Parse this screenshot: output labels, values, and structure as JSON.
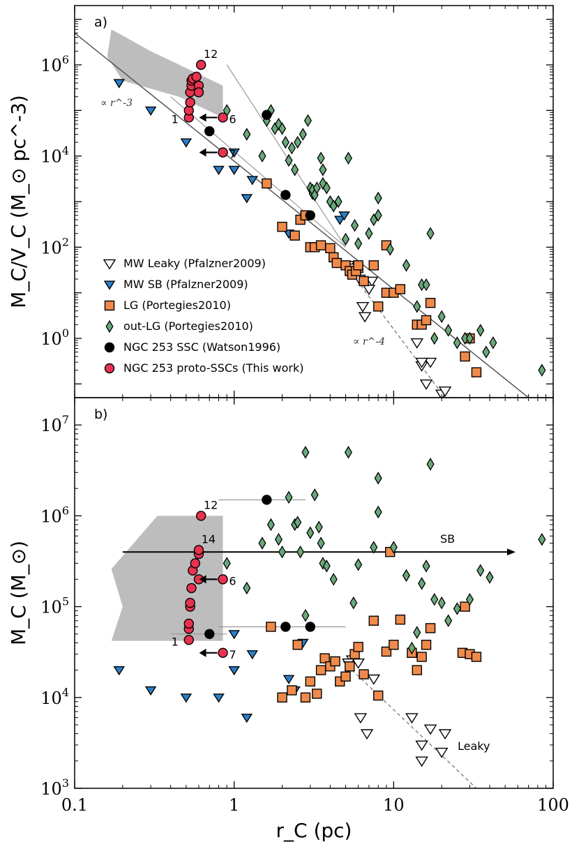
{
  "chart_data": [
    {
      "panel_label": "a)",
      "type": "scatter",
      "xlabel": "r_C (pc)",
      "ylabel": "M_C/V_C (M_⊙ pc^-3)",
      "xscale": "log",
      "yscale": "log",
      "xlim": [
        0.1,
        100
      ],
      "ylim": [
        0.05,
        20000000
      ],
      "ytick_labels": [
        "10^0",
        "10^2",
        "10^4",
        "10^6"
      ],
      "xtick_labels": [
        "0.1",
        "1",
        "10",
        "100"
      ],
      "legend_position": "lower-left",
      "legend": [
        {
          "name": "MW Leaky (Pfalzner2009)",
          "marker": "triangle-down-open",
          "color": "#ffffff"
        },
        {
          "name": "MW SB (Pfalzner2009)",
          "marker": "triangle-down",
          "color": "#2a7fc9"
        },
        {
          "name": "LG (Portegies2010)",
          "marker": "square",
          "color": "#f08a4b"
        },
        {
          "name": "out-LG (Portegies2010)",
          "marker": "diamond",
          "color": "#6aa87a"
        },
        {
          "name": "NGC 253 SSC (Watson1996)",
          "marker": "circle",
          "color": "#000000"
        },
        {
          "name": "NGC 253 proto-SSCs (This work)",
          "marker": "circle",
          "color": "#e8334f"
        }
      ],
      "annotations": [
        "∝ r^-3",
        "∝ r^-4",
        "12",
        "1",
        "6",
        "7"
      ],
      "series": [
        {
          "name": "MW Leaky (Pfalzner2009)",
          "x": [
            5.2,
            5.7,
            6.1,
            6.4,
            6.6,
            7.3,
            7.0,
            14,
            15,
            16,
            17,
            15,
            20,
            21
          ],
          "y": [
            40,
            35,
            20,
            5,
            3,
            18,
            12,
            0.8,
            0.25,
            0.1,
            0.3,
            0.3,
            0.06,
            0.07
          ]
        },
        {
          "name": "MW SB (Pfalzner2009)",
          "x": [
            0.19,
            0.3,
            0.5,
            0.8,
            1.0,
            1.0,
            1.3,
            1.2,
            2.2,
            4.6,
            4.9
          ],
          "y": [
            400000,
            100000,
            20000,
            5000,
            12000,
            5000,
            3000,
            1200,
            200,
            400,
            500
          ]
        },
        {
          "name": "LG (Portegies2010)",
          "x": [
            1.6,
            2.0,
            2.4,
            2.6,
            2.8,
            2.8,
            3.0,
            3.2,
            3.5,
            4.0,
            4.2,
            4.4,
            5.0,
            5.3,
            5.5,
            6.0,
            5.8,
            6.0,
            6.5,
            7.5,
            8.0,
            9.0,
            9.0,
            10,
            11,
            14,
            15,
            16,
            17,
            28,
            30,
            33
          ],
          "y": [
            2500,
            280,
            180,
            400,
            500,
            500,
            100,
            100,
            110,
            95,
            60,
            45,
            40,
            30,
            25,
            35,
            30,
            40,
            18,
            40,
            5,
            110,
            10,
            10,
            12,
            2,
            2,
            2.5,
            6,
            0.4,
            1,
            0.18
          ]
        },
        {
          "name": "out-LG (Portegies2010)",
          "x": [
            0.9,
            1.2,
            1.5,
            1.6,
            1.7,
            1.8,
            1.9,
            2.0,
            2.1,
            2.3,
            2.2,
            2.4,
            2.5,
            2.7,
            2.9,
            3.0,
            3.1,
            3.1,
            3.2,
            3.3,
            3.5,
            3.6,
            3.6,
            3.8,
            4.0,
            4.2,
            4.5,
            5.0,
            5.2,
            5.7,
            6.0,
            7.0,
            7.5,
            8.0,
            8.0,
            9.5,
            12,
            14,
            15,
            16,
            17,
            18,
            20,
            22,
            25,
            28,
            30,
            35,
            38,
            42,
            85
          ],
          "y": [
            100000,
            30000,
            10000,
            60000,
            100000,
            40000,
            50000,
            40000,
            20000,
            15000,
            8000,
            5000,
            20000,
            30000,
            60000,
            2000,
            1500,
            1800,
            1400,
            2000,
            9000,
            5000,
            2500,
            2000,
            1000,
            800,
            1000,
            150,
            9000,
            300,
            120,
            200,
            400,
            1200,
            500,
            90,
            40,
            5,
            15,
            15,
            200,
            1,
            3,
            1.5,
            0.8,
            1,
            1,
            1.5,
            0.5,
            0.8,
            0.2
          ]
        },
        {
          "name": "NGC 253 SSC (Watson1996)",
          "x": [
            1.6,
            0.7,
            2.1,
            3.0
          ],
          "y": [
            80000,
            35000,
            1400,
            500
          ]
        },
        {
          "name": "NGC 253 proto-SSCs (This work)",
          "x": [
            0.52,
            0.52,
            0.53,
            0.53,
            0.54,
            0.54,
            0.55,
            0.58,
            0.6,
            0.6,
            0.62,
            0.85,
            0.85
          ],
          "y": [
            70000,
            100000,
            150000,
            250000,
            350000,
            450000,
            500000,
            550000,
            350000,
            250000,
            1000000,
            70000,
            12000
          ],
          "labels": [
            "1",
            "",
            "",
            "",
            "",
            "",
            "",
            "",
            "",
            "",
            "12",
            "6",
            "7"
          ]
        }
      ]
    },
    {
      "panel_label": "b)",
      "type": "scatter",
      "xlabel": "r_C (pc)",
      "ylabel": "M_C (M_⊙)",
      "xscale": "log",
      "yscale": "log",
      "xlim": [
        0.1,
        100
      ],
      "ylim": [
        1000,
        20000000
      ],
      "ytick_labels": [
        "10^3",
        "10^4",
        "10^5",
        "10^6",
        "10^7"
      ],
      "xtick_labels": [
        "0.1",
        "1",
        "10",
        "100"
      ],
      "annotations": [
        "SB",
        "Leaky",
        "12",
        "14",
        "6",
        "1",
        "7"
      ],
      "series": [
        {
          "name": "MW Leaky (Pfalzner2009)",
          "x": [
            5.5,
            6.0,
            7.5,
            5.2,
            6.2,
            6.8,
            13,
            15,
            17,
            15,
            20,
            21
          ],
          "y": [
            26000,
            24000,
            16000,
            24000,
            6000,
            4000,
            6000,
            3000,
            4500,
            2000,
            2500,
            4000
          ]
        },
        {
          "name": "MW SB (Pfalzner2009)",
          "x": [
            0.19,
            0.3,
            0.5,
            0.8,
            1.0,
            1.0,
            1.3,
            1.2,
            2.2,
            2.4,
            2.7
          ],
          "y": [
            20000,
            12000,
            10000,
            10000,
            50000,
            20000,
            30000,
            6000,
            16000,
            12000,
            40000
          ]
        },
        {
          "name": "LG (Portegies2010)",
          "x": [
            1.7,
            2.0,
            2.3,
            2.5,
            2.8,
            3.0,
            3.3,
            3.5,
            3.7,
            4.0,
            4.3,
            4.6,
            5.0,
            5.3,
            5.7,
            6.0,
            6.5,
            7.5,
            8.0,
            9.0,
            10,
            11,
            13,
            14,
            15,
            16,
            17,
            27,
            28,
            30,
            33,
            9.5
          ],
          "y": [
            60000,
            10000,
            12000,
            38000,
            10000,
            15000,
            11000,
            20000,
            27000,
            22000,
            25000,
            15000,
            17000,
            22000,
            30000,
            36000,
            18000,
            70000,
            10500,
            32000,
            38000,
            72000,
            31000,
            20000,
            28000,
            38000,
            58000,
            31000,
            100000,
            30000,
            28000,
            400000
          ]
        },
        {
          "name": "out-LG (Portegies2010)",
          "x": [
            0.9,
            1.2,
            1.5,
            1.7,
            1.9,
            2.0,
            2.2,
            2.4,
            2.5,
            2.6,
            2.8,
            3.0,
            3.2,
            3.4,
            3.5,
            3.6,
            3.8,
            4.2,
            5.2,
            5.6,
            6.0,
            7.5,
            8.0,
            8.0,
            10,
            12,
            14,
            15,
            16,
            17,
            18,
            20,
            22,
            25,
            30,
            35,
            40,
            85,
            13,
            2.8
          ],
          "y": [
            300000,
            160000,
            500000,
            800000,
            550000,
            400000,
            1600000,
            800000,
            850000,
            400000,
            5000000,
            650000,
            1700000,
            750000,
            500000,
            300000,
            280000,
            200000,
            5000000,
            110000,
            290000,
            450000,
            1100000,
            2600000,
            450000,
            220000,
            52000,
            180000,
            280000,
            3700000,
            120000,
            110000,
            70000,
            95000,
            120000,
            250000,
            210000,
            550000,
            35000,
            80000
          ]
        },
        {
          "name": "NGC 253 SSC (Watson1996)",
          "x": [
            1.6,
            0.7,
            2.1,
            3.0
          ],
          "y": [
            1500000,
            50000,
            60000,
            60000
          ]
        },
        {
          "name": "NGC 253 proto-SSCs (This work)",
          "x": [
            0.52,
            0.52,
            0.52,
            0.53,
            0.53,
            0.54,
            0.55,
            0.57,
            0.6,
            0.6,
            0.6,
            0.62,
            0.85,
            0.85
          ],
          "y": [
            43000,
            57000,
            65000,
            100000,
            110000,
            160000,
            250000,
            300000,
            200000,
            380000,
            420000,
            1000000,
            200000,
            31000
          ],
          "labels": [
            "1",
            "",
            "",
            "",
            "",
            "",
            "",
            "",
            "",
            "",
            "14",
            "12",
            "6",
            "7"
          ]
        }
      ]
    }
  ]
}
